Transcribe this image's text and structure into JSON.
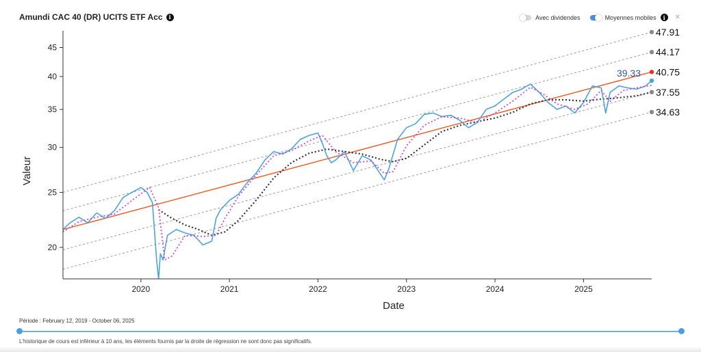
{
  "header": {
    "title": "Amundi CAC 40 (DR) UCITS ETF Acc",
    "info_icon": "info-icon"
  },
  "toggles": {
    "dividends_label": "Avec dividendes",
    "dividends_on": false,
    "moving_avg_label": "Moyennes mobiles",
    "moving_avg_on": true,
    "expand_icon": "expand-icon"
  },
  "footer": {
    "period": "Période : February 12, 2019 - October 06, 2025",
    "note": "L'historique de cours est inférieur à 10 ans, les éléments fournis par la droite de régression ne sont donc pas significatifs."
  },
  "colors": {
    "price": "#4aa3df",
    "regression": "#e8602c",
    "short_ma": "#cc44dd",
    "long_ma": "#333333",
    "channel": "#999999",
    "last_marker": "#3355aa"
  },
  "chart_data": {
    "type": "line",
    "xlabel": "Date",
    "ylabel": "Valeur",
    "yscale": "log",
    "xlim": [
      2019.12,
      2025.77
    ],
    "ylim": [
      17.6,
      47.5
    ],
    "x_ticks": [
      "2020",
      "2021",
      "2022",
      "2023",
      "2024",
      "2025"
    ],
    "y_ticks": [
      20,
      25,
      30,
      35,
      40,
      45
    ],
    "series": [
      {
        "role": "price",
        "x": [
          2019.12,
          2019.2,
          2019.3,
          2019.4,
          2019.5,
          2019.6,
          2019.7,
          2019.8,
          2019.9,
          2020.0,
          2020.07,
          2020.13,
          2020.18,
          2020.2,
          2020.22,
          2020.25,
          2020.3,
          2020.4,
          2020.5,
          2020.6,
          2020.7,
          2020.8,
          2020.85,
          2020.9,
          2021.0,
          2021.1,
          2021.2,
          2021.3,
          2021.4,
          2021.5,
          2021.6,
          2021.7,
          2021.8,
          2021.9,
          2022.0,
          2022.05,
          2022.1,
          2022.15,
          2022.2,
          2022.3,
          2022.4,
          2022.5,
          2022.6,
          2022.7,
          2022.75,
          2022.8,
          2022.9,
          2023.0,
          2023.1,
          2023.2,
          2023.3,
          2023.4,
          2023.5,
          2023.6,
          2023.7,
          2023.8,
          2023.9,
          2024.0,
          2024.1,
          2024.2,
          2024.3,
          2024.4,
          2024.5,
          2024.6,
          2024.7,
          2024.8,
          2024.9,
          2025.0,
          2025.1,
          2025.2,
          2025.25,
          2025.3,
          2025.4,
          2025.5,
          2025.6,
          2025.7,
          2025.77
        ],
        "y": [
          21.5,
          22.1,
          22.6,
          22.1,
          23.0,
          22.5,
          23.2,
          24.5,
          25.0,
          25.5,
          25.0,
          24.0,
          18.8,
          17.6,
          19.5,
          19.0,
          21.0,
          21.5,
          21.2,
          21.0,
          20.2,
          20.5,
          22.5,
          23.3,
          24.2,
          24.8,
          26.0,
          27.0,
          28.5,
          29.5,
          29.2,
          29.8,
          31.0,
          31.5,
          31.8,
          30.5,
          29.0,
          28.2,
          28.5,
          29.5,
          27.3,
          29.0,
          28.5,
          27.0,
          26.3,
          27.5,
          31.0,
          32.5,
          33.0,
          34.3,
          34.5,
          34.0,
          34.2,
          33.5,
          32.5,
          33.2,
          35.0,
          35.5,
          36.5,
          37.5,
          38.0,
          38.8,
          37.5,
          36.0,
          35.0,
          35.5,
          34.5,
          36.0,
          38.5,
          38.2,
          34.5,
          37.5,
          38.5,
          38.2,
          38.0,
          38.5,
          39.33
        ]
      },
      {
        "role": "short_ma",
        "x": [
          2019.12,
          2019.3,
          2019.5,
          2019.7,
          2019.9,
          2020.1,
          2020.2,
          2020.27,
          2020.35,
          2020.5,
          2020.7,
          2020.85,
          2020.95,
          2021.1,
          2021.3,
          2021.5,
          2021.7,
          2021.9,
          2022.05,
          2022.2,
          2022.4,
          2022.6,
          2022.75,
          2022.85,
          2023.0,
          2023.2,
          2023.4,
          2023.6,
          2023.8,
          2024.0,
          2024.2,
          2024.4,
          2024.55,
          2024.7,
          2024.9,
          2025.05,
          2025.2,
          2025.3,
          2025.45,
          2025.6,
          2025.77
        ],
        "y": [
          21.3,
          22.2,
          22.6,
          22.9,
          24.2,
          25.5,
          23.5,
          19.0,
          19.3,
          21.0,
          20.9,
          21.0,
          22.5,
          24.6,
          26.8,
          29.0,
          29.6,
          30.8,
          31.5,
          29.5,
          28.2,
          28.4,
          27.0,
          27.2,
          30.2,
          32.8,
          34.0,
          33.8,
          33.2,
          34.5,
          36.2,
          38.3,
          37.2,
          35.8,
          35.0,
          35.8,
          37.8,
          36.2,
          37.8,
          38.2,
          38.6
        ]
      },
      {
        "role": "long_ma",
        "x": [
          2020.2,
          2020.35,
          2020.5,
          2020.65,
          2020.8,
          2020.95,
          2021.1,
          2021.3,
          2021.5,
          2021.7,
          2021.9,
          2022.1,
          2022.3,
          2022.5,
          2022.7,
          2022.85,
          2023.0,
          2023.2,
          2023.4,
          2023.6,
          2023.8,
          2024.0,
          2024.2,
          2024.4,
          2024.6,
          2024.8,
          2025.0,
          2025.2,
          2025.4,
          2025.6,
          2025.77
        ],
        "y": [
          23.3,
          22.5,
          21.9,
          21.5,
          21.0,
          21.3,
          22.3,
          24.2,
          26.5,
          28.2,
          29.3,
          29.8,
          29.5,
          29.2,
          28.6,
          28.3,
          28.7,
          30.3,
          32.0,
          32.8,
          33.3,
          33.8,
          34.6,
          35.8,
          36.4,
          36.4,
          36.2,
          36.5,
          36.7,
          37.0,
          37.55
        ]
      },
      {
        "role": "regression",
        "x": [
          2019.12,
          2025.77
        ],
        "y": [
          21.5,
          40.75
        ]
      },
      {
        "role": "channel_upper2",
        "x": [
          2019.12,
          2025.77
        ],
        "y": [
          25.0,
          47.91
        ]
      },
      {
        "role": "channel_upper1",
        "x": [
          2019.12,
          2025.77
        ],
        "y": [
          23.2,
          44.17
        ]
      },
      {
        "role": "channel_lower1",
        "x": [
          2019.12,
          2025.77
        ],
        "y": [
          19.8,
          37.55
        ]
      },
      {
        "role": "channel_lower2",
        "x": [
          2019.12,
          2025.77
        ],
        "y": [
          18.3,
          34.63
        ]
      }
    ],
    "end_labels": [
      "47.91",
      "44.17",
      "40.75",
      "37.55",
      "34.63"
    ],
    "last_value_label": "39.33"
  }
}
